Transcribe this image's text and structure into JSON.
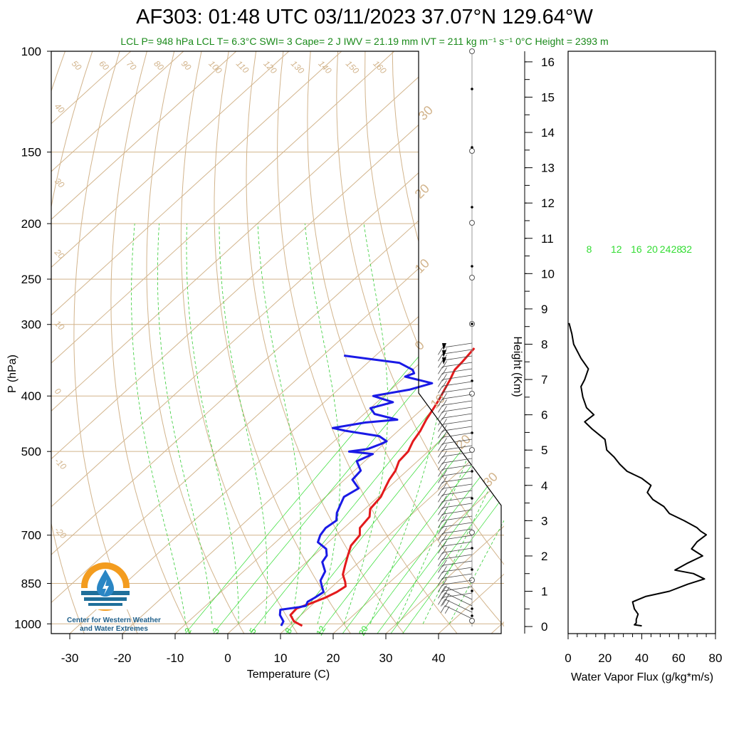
{
  "header": {
    "title": "AF303: 01:48 UTC 03/11/2023  37.07°N 129.64°W",
    "subtitle": "LCL P= 948 hPa  LCL T= 6.3°C  SWI= 3  Cape= 2 J  IWV = 21.19 mm  IVT = 211 kg m⁻¹ s⁻¹  0°C Height = 2393 m"
  },
  "logo": {
    "line1": "Center for Western Weather",
    "line2": "and Water Extremes",
    "colors": {
      "ring": "#f39c1f",
      "water": "#1f6f9a",
      "drop": "#2a86c4"
    }
  },
  "colors": {
    "temperature": "#e31a1c",
    "dewpoint": "#1a1ae6",
    "mixing_ratio": "#33dd33",
    "dry_adiabat": "#d2b48c",
    "moist_adiabat": "#33cc33",
    "wvflux": "#000000"
  },
  "chart_data": [
    {
      "type": "line",
      "name": "skew-t",
      "xlabel": "Temperature (C)",
      "ylabel": "P (hPa)",
      "xticks": [
        -30,
        -20,
        -10,
        0,
        10,
        20,
        30,
        40
      ],
      "yticks": [
        100,
        150,
        200,
        250,
        300,
        400,
        500,
        700,
        850,
        1000
      ],
      "xlim": [
        -33,
        37
      ],
      "ylim": [
        1040,
        100
      ],
      "mixing_ratio_top_labels": [
        "8",
        "12",
        "16",
        "20",
        "24",
        "28",
        "32"
      ],
      "mixing_ratio_bottom_labels": [
        "2",
        "3",
        "5",
        "8",
        "12",
        "20"
      ],
      "dry_adiabat_labels": [
        "50",
        "60",
        "70",
        "80",
        "90",
        "100",
        "110",
        "120",
        "130",
        "140",
        "150",
        "160"
      ],
      "isotherm_labels": [
        "40",
        "30",
        "20",
        "10",
        "0",
        "-10",
        "-20"
      ],
      "series": [
        {
          "name": "temperature",
          "p": [
            1008,
            990,
            965,
            940,
            920,
            900,
            880,
            860,
            845,
            820,
            790,
            760,
            730,
            700,
            680,
            650,
            630,
            600,
            580,
            560,
            540,
            520,
            500,
            480,
            460,
            440,
            420,
            405,
            390,
            375,
            360,
            350,
            340,
            330
          ],
          "t": [
            12.5,
            10,
            8,
            7.8,
            9.5,
            11,
            12,
            12.5,
            11.5,
            9.5,
            8,
            6.5,
            5,
            4.5,
            3,
            2.5,
            1,
            0.5,
            -0.5,
            -1.5,
            -2.2,
            -3.5,
            -3.8,
            -5,
            -5.8,
            -7,
            -8,
            -8.8,
            -9.8,
            -10.8,
            -12,
            -12.2,
            -12.5,
            -12.8
          ]
        },
        {
          "name": "dewpoint",
          "p": [
            1008,
            990,
            965,
            945,
            935,
            930,
            915,
            900,
            880,
            860,
            840,
            810,
            780,
            760,
            740,
            720,
            700,
            680,
            660,
            640,
            620,
            600,
            580,
            560,
            540,
            520,
            505,
            500,
            495,
            485,
            480,
            470,
            460,
            455,
            445,
            440,
            430,
            420,
            410,
            400,
            390,
            380,
            370,
            365,
            360,
            350,
            345,
            340
          ],
          "t": [
            8.5,
            8,
            6,
            5,
            8,
            9,
            8.5,
            9,
            9.5,
            8,
            6.5,
            5.5,
            3,
            2.5,
            1,
            -2,
            -3,
            -3.5,
            -3,
            -4.5,
            -5.5,
            -6.5,
            -5.5,
            -8.5,
            -8.8,
            -11.5,
            -10,
            -15,
            -12,
            -10.5,
            -10,
            -12.5,
            -20,
            -23,
            -18,
            -12.5,
            -18,
            -20,
            -17,
            -22,
            -16.5,
            -13.5,
            -20,
            -19,
            -20,
            -24,
            -30,
            -36
          ]
        }
      ]
    },
    {
      "type": "line",
      "name": "water-vapor-flux",
      "xlabel": "Water Vapor Flux (g/kg*m/s)",
      "ylabel": "Height (Km)",
      "xticks": [
        0,
        20,
        40,
        60,
        80
      ],
      "yticks": [
        0,
        1,
        2,
        3,
        4,
        5,
        6,
        7,
        8,
        9,
        10,
        11,
        12,
        13,
        14,
        15,
        16
      ],
      "xlim": [
        0,
        80
      ],
      "ylim": [
        -0.2,
        16.3
      ],
      "series": [
        {
          "name": "flux",
          "h": [
            0.02,
            0.05,
            0.1,
            0.2,
            0.35,
            0.5,
            0.7,
            0.85,
            1.0,
            1.2,
            1.35,
            1.5,
            1.6,
            1.8,
            2.0,
            2.2,
            2.4,
            2.6,
            2.7,
            2.8,
            3.0,
            3.2,
            3.4,
            3.6,
            3.8,
            4.0,
            4.2,
            4.4,
            4.6,
            4.8,
            5.0,
            5.3,
            5.6,
            5.8,
            6.0,
            6.2,
            6.5,
            6.8,
            7.0,
            7.3,
            7.6,
            8.0,
            8.3,
            8.6
          ],
          "flux": [
            40,
            36,
            37,
            37,
            38,
            36,
            35,
            42,
            55,
            65,
            74,
            68,
            58,
            65,
            73,
            67,
            70,
            75,
            72,
            70,
            63,
            55,
            52,
            46,
            43,
            45,
            40,
            32,
            28,
            25,
            21,
            20,
            13,
            9,
            14,
            10,
            8,
            7,
            9,
            11,
            7,
            3,
            2,
            0.5
          ]
        }
      ]
    }
  ]
}
